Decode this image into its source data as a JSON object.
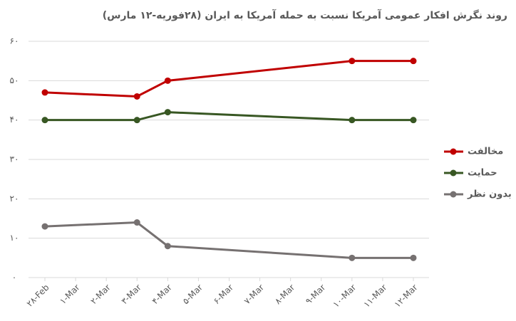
{
  "chart_data": {
    "type": "line",
    "title": "روند نگرش افکار عمومی آمریکا نسبت به حمله آمریکا به ایران (۲۸فوریه-۱۲ مارس)",
    "xticks": [
      "۲۸-Feb",
      "۱-Mar",
      "۲-Mar",
      "۳-Mar",
      "۴-Mar",
      "۵-Mar",
      "۶-Mar",
      "۷-Mar",
      "۸-Mar",
      "۹-Mar",
      "۱۰-Mar",
      "۱۱-Mar",
      "۱۲-Mar"
    ],
    "x": [
      "۲۸-Feb",
      "۳-Mar",
      "۴-Mar",
      "۱۰-Mar",
      "۱۲-Mar"
    ],
    "series": [
      {
        "name": "مخالفت",
        "color": "#c00000",
        "values": [
          47,
          46,
          50,
          55,
          55
        ]
      },
      {
        "name": "حمایت",
        "color": "#385723",
        "values": [
          40,
          40,
          42,
          40,
          40
        ]
      },
      {
        "name": "بدون نظر",
        "color": "#767171",
        "values": [
          13,
          14,
          8,
          5,
          5
        ]
      }
    ],
    "ylim": [
      0,
      60
    ],
    "yticks": [
      {
        "value": 0,
        "label": "۰"
      },
      {
        "value": 10,
        "label": "۱۰"
      },
      {
        "value": 20,
        "label": "۲۰"
      },
      {
        "value": 30,
        "label": "۳۰"
      },
      {
        "value": 40,
        "label": "۴۰"
      },
      {
        "value": 50,
        "label": "۵۰"
      },
      {
        "value": 60,
        "label": "۶۰"
      }
    ],
    "grid": true,
    "legend": "right"
  }
}
